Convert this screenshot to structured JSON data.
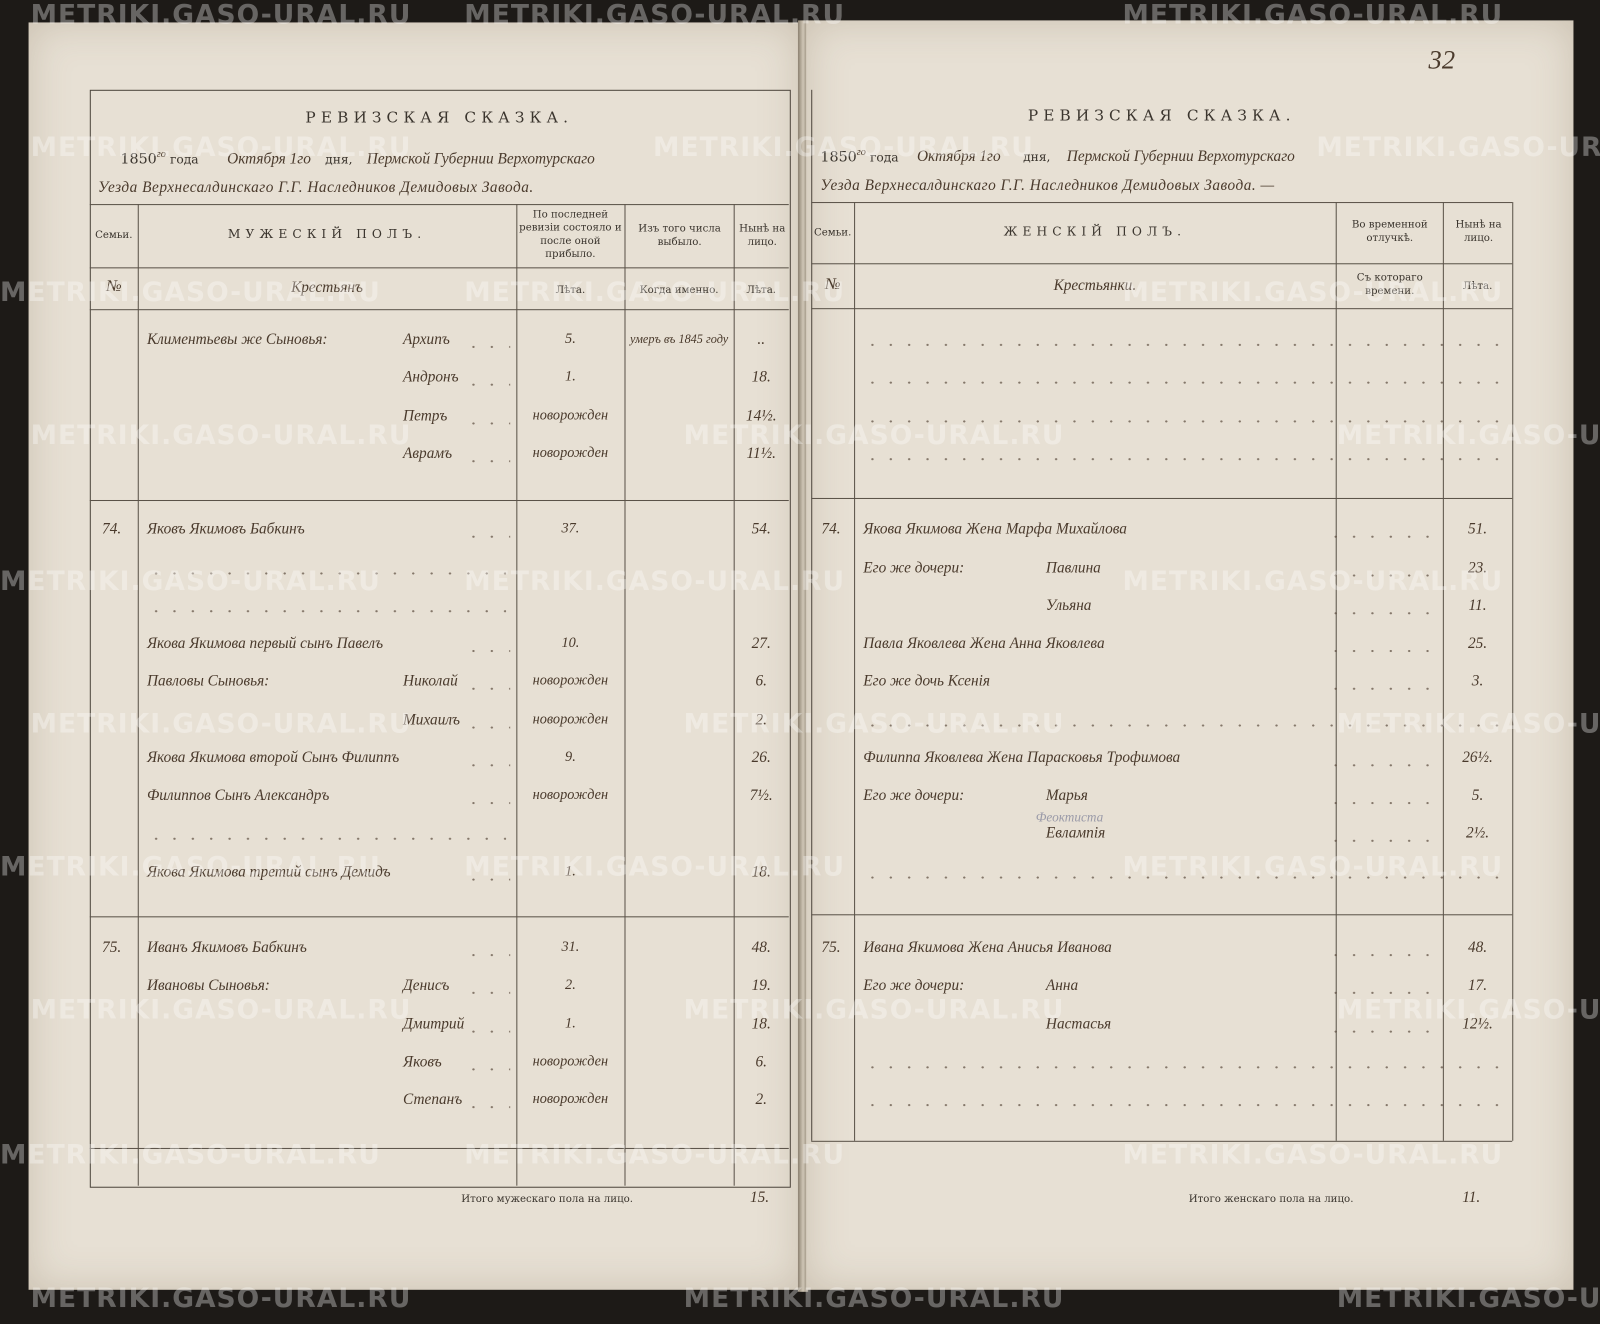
{
  "watermark": "METRIKI.GASO-URAL.RU",
  "page_number": "32",
  "left": {
    "title": "РЕВИЗСКАЯ СКАЗКА.",
    "year": "1850",
    "year_suffix": "го",
    "year_word": "года",
    "month_day": "Октября 1го",
    "day_word": "дня,",
    "province": "Пермской Губернии Верхотурскаго",
    "district": "Уезда Верхнесалдинскаго Г.Г. Наследников Демидовых Завода.",
    "headers": {
      "family": "Семьи.",
      "section": "МУЖЕСКІЙ ПОЛЪ.",
      "last_revision": "По последней ревизіи состояло и после оной прибыло.",
      "dropped": "Изъ того числа выбыло.",
      "present": "Нынѣ на лицо.",
      "num_sign": "№",
      "estate": "Крестьянъ",
      "years1": "Лѣта.",
      "when": "Когда именно.",
      "years2": "Лѣта."
    },
    "rows": [
      {
        "prefix": "Климентьевы же Сыновья:",
        "name": "Архипъ",
        "age_rev": "5.",
        "when": "умеръ въ 1845 году",
        "age_now": ".."
      },
      {
        "name": "Андронъ",
        "cont": true,
        "age_rev": "1.",
        "age_now": "18."
      },
      {
        "name": "Петръ",
        "cont": true,
        "age_rev": "новорожден",
        "age_now": "14½."
      },
      {
        "name": "Аврамъ",
        "cont": true,
        "age_rev": "новорожден",
        "age_now": "11½."
      },
      {
        "blank": true
      },
      {
        "num": "74.",
        "text": "Яковъ Якимовъ Бабкинъ",
        "age_rev": "37.",
        "age_now": "54."
      },
      {
        "dots": true
      },
      {
        "dots": true
      },
      {
        "text": "Якова Якимова первый сынъ Павелъ",
        "age_rev": "10.",
        "age_now": "27."
      },
      {
        "prefix": "Павловы Сыновья:",
        "name": "Николай",
        "age_rev": "новорожден",
        "age_now": "6."
      },
      {
        "name": "Михаилъ",
        "cont": true,
        "age_rev": "новорожден",
        "age_now": "2."
      },
      {
        "text": "Якова Якимова второй Сынъ Филиппъ",
        "age_rev": "9.",
        "age_now": "26."
      },
      {
        "text": "Филиппов Сынъ Александръ",
        "age_rev": "новорожден",
        "age_now": "7½."
      },
      {
        "dots": true
      },
      {
        "text": "Якова Якимова третий сынъ Демидъ",
        "age_rev": "1.",
        "age_now": "18."
      },
      {
        "blank": true
      },
      {
        "num": "75.",
        "text": "Иванъ Якимовъ Бабкинъ",
        "age_rev": "31.",
        "age_now": "48."
      },
      {
        "prefix": "Ивановы Сыновья:",
        "name": "Денисъ",
        "age_rev": "2.",
        "age_now": "19."
      },
      {
        "name": "Дмитрий",
        "cont": true,
        "age_rev": "1.",
        "age_now": "18."
      },
      {
        "name": "Яковъ",
        "cont": true,
        "age_rev": "новорожден",
        "age_now": "6."
      },
      {
        "name": "Степанъ",
        "cont": true,
        "age_rev": "новорожден",
        "age_now": "2."
      }
    ],
    "total_label": "Итого мужескаго пола на лицо.",
    "total_value": "15."
  },
  "right": {
    "title": "РЕВИЗСКАЯ СКАЗКА.",
    "year": "1850",
    "year_suffix": "го",
    "year_word": "года",
    "month_day": "Октября 1го",
    "day_word": "дня,",
    "province": "Пермской Губернии Верхотурскаго",
    "district": "Уезда Верхнесалдинскаго Г.Г. Наследников Демидовых Завода. —",
    "headers": {
      "family": "Семьи.",
      "section": "ЖЕНСКІЙ ПОЛЪ.",
      "absence": "Во временной отлучкѣ.",
      "present": "Нынѣ на лицо.",
      "num_sign": "№",
      "estate": "Крестьянки.",
      "since": "Съ котораго времени.",
      "years": "Лѣта."
    },
    "rows": [
      {
        "dots": true
      },
      {
        "dots": true
      },
      {
        "dots": true
      },
      {
        "dots": true
      },
      {
        "blank": true
      },
      {
        "num": "74.",
        "text": "Якова Якимова Жена Марфа Михайлова",
        "age_now": "51."
      },
      {
        "prefix": "Его же дочери:",
        "name": "Павлина",
        "age_now": "23."
      },
      {
        "name": "Ульяна",
        "cont": true,
        "age_now": "11."
      },
      {
        "text": "Павла Яковлева Жена Анна Яковлева",
        "age_now": "25."
      },
      {
        "text": "Его же дочь Ксенія",
        "age_now": "3."
      },
      {
        "dots": true
      },
      {
        "text": "Филиппа Яковлева Жена Парасковья Трофимова",
        "age_now": "26½."
      },
      {
        "prefix": "Его же дочери:",
        "name": "Марья",
        "age_now": "5."
      },
      {
        "name": "Евлампія",
        "cont": true,
        "note": "Феоктиста",
        "age_now": "2½."
      },
      {
        "dots": true
      },
      {
        "blank": true
      },
      {
        "num": "75.",
        "text": "Ивана Якимова Жена Анисья Иванова",
        "age_now": "48."
      },
      {
        "prefix": "Его же дочери:",
        "name": "Анна",
        "age_now": "17."
      },
      {
        "name": "Настасья",
        "cont": true,
        "age_now": "12½."
      },
      {
        "dots": true
      },
      {
        "dots": true
      }
    ],
    "total_label": "Итого женскаго пола на лицо.",
    "total_value": "11."
  },
  "colors": {
    "paper": "#e7e0d4",
    "ink_print": "#3b352e",
    "ink_hand": "#4a3a2c",
    "background": "#1d1a17"
  }
}
